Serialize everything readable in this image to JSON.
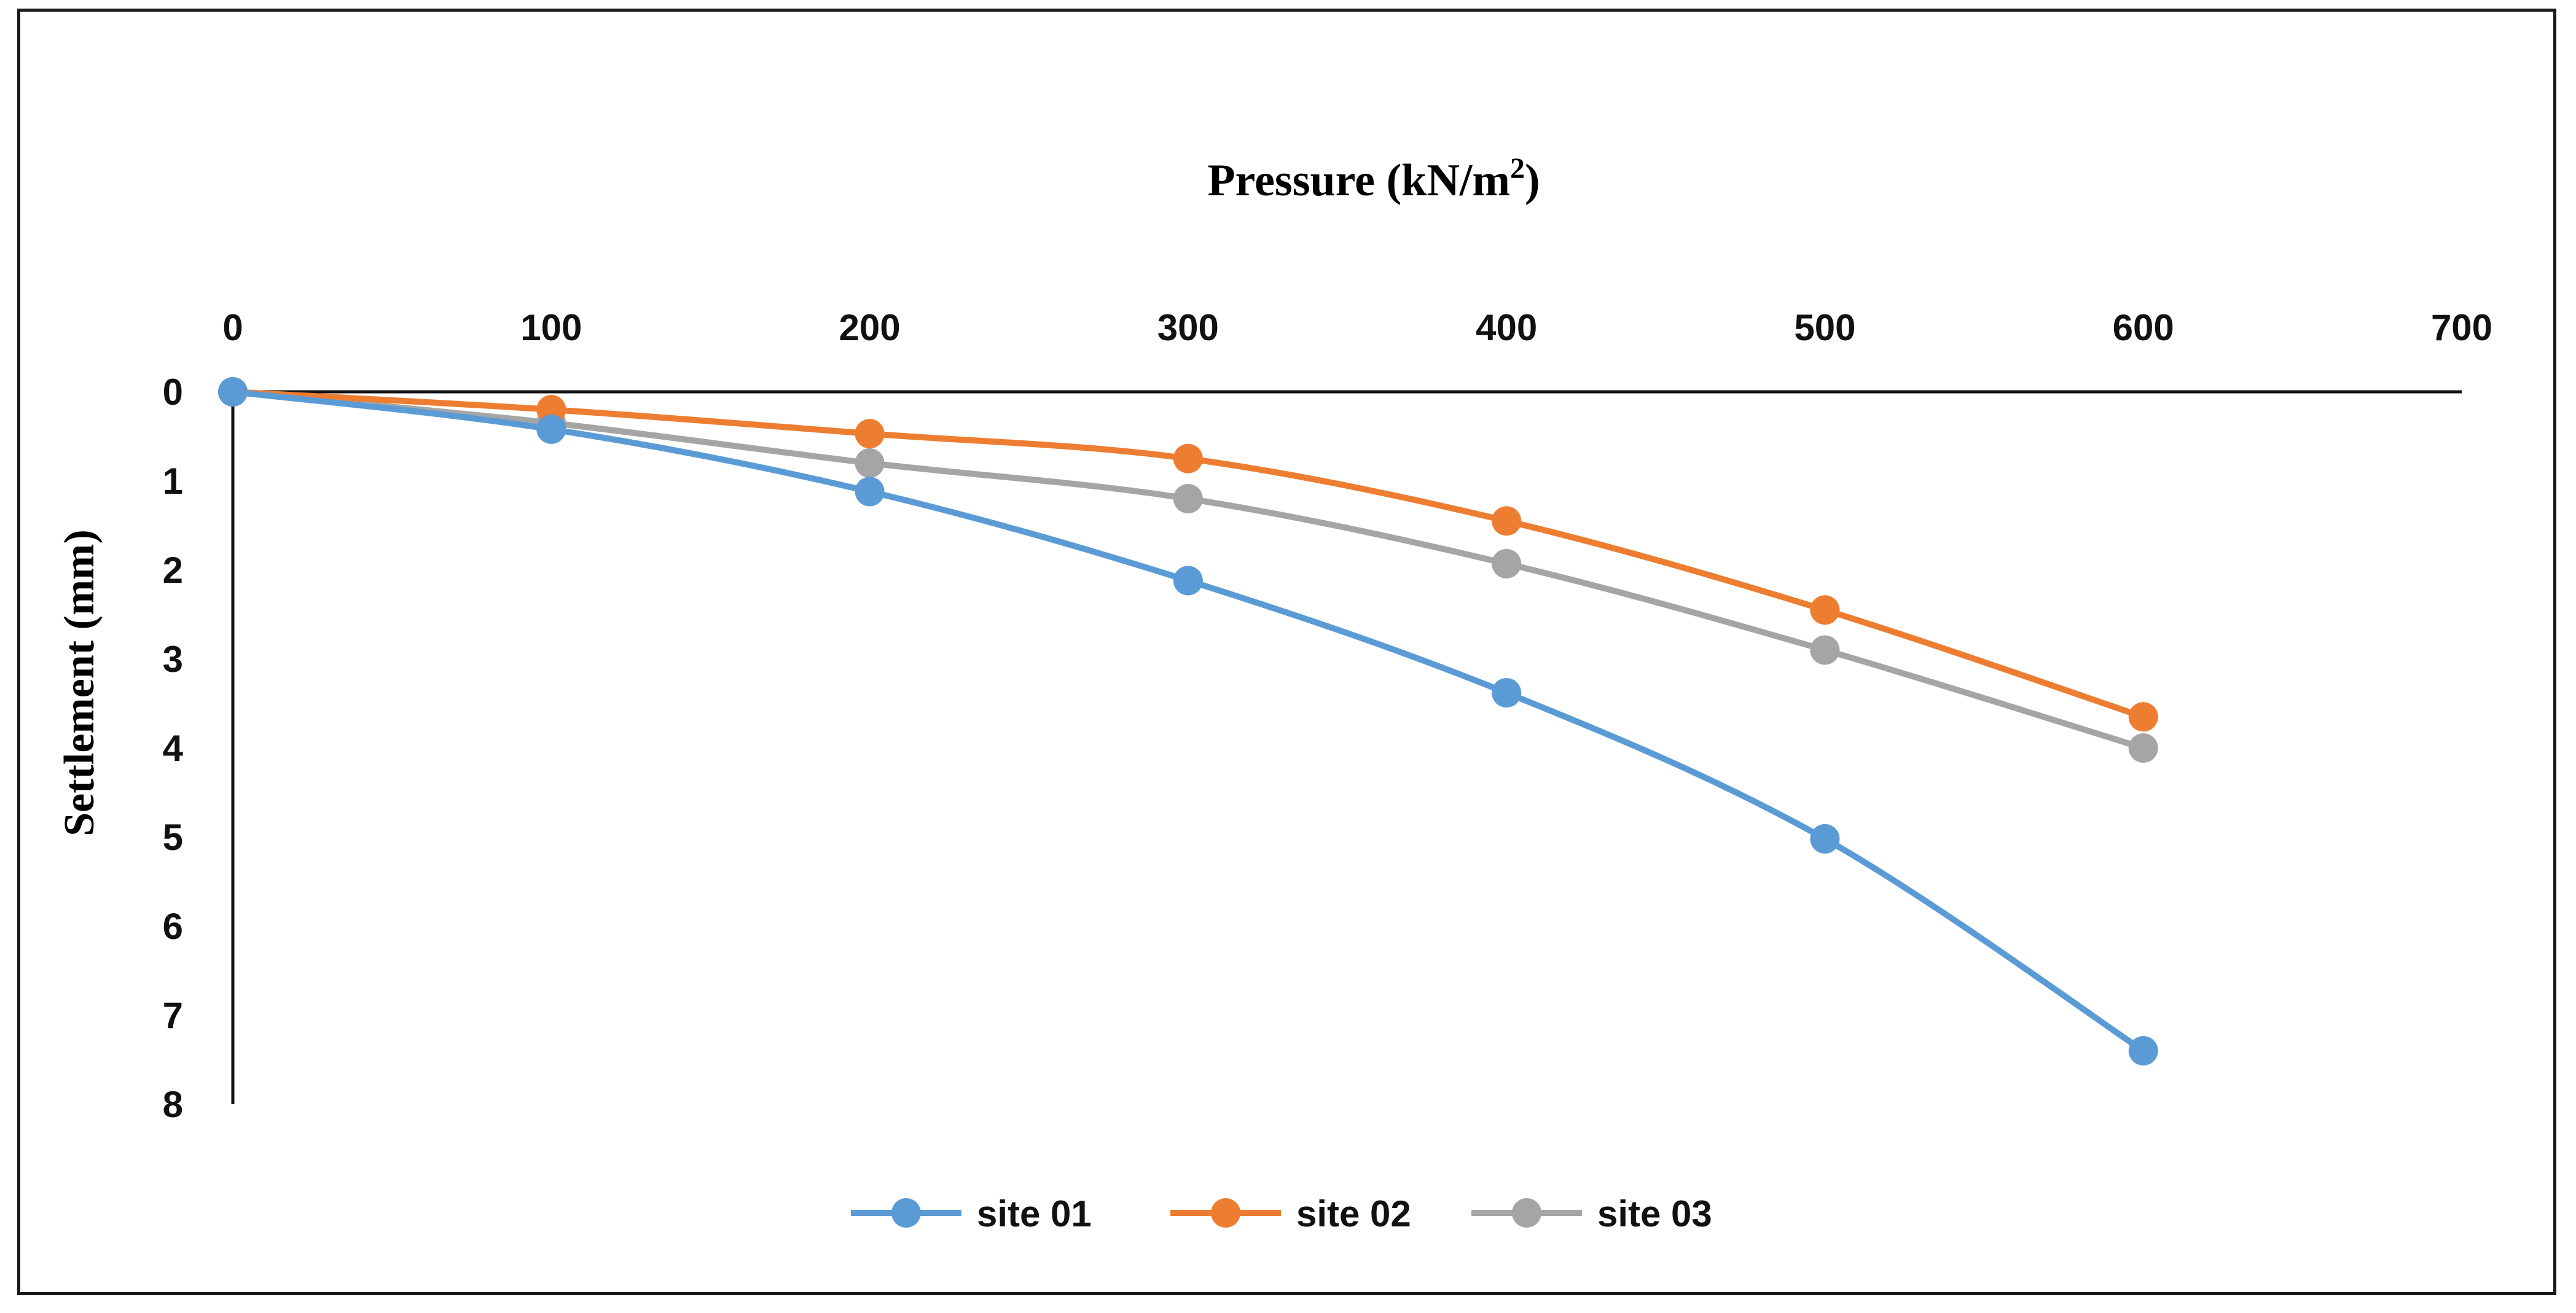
{
  "chart_data": {
    "type": "line",
    "title": "",
    "xlabel": "Pressure (kN/m",
    "xlabel_superscript": "2",
    "xlabel_close": ")",
    "ylabel": "Settlement (mm)",
    "xlim": [
      0,
      700
    ],
    "ylim": [
      0,
      8
    ],
    "y_inverted": true,
    "x_ticks": [
      "0",
      "100",
      "200",
      "300",
      "400",
      "500",
      "600",
      "700"
    ],
    "y_ticks": [
      "0",
      "1",
      "2",
      "3",
      "4",
      "5",
      "6",
      "7",
      "8"
    ],
    "x_axis_position": "top",
    "grid": false,
    "smooth": true,
    "legend_position": "bottom",
    "x": [
      0,
      100,
      200,
      300,
      400,
      500,
      600
    ],
    "series": [
      {
        "name": "site 01",
        "color": "#5B9BD5",
        "values": [
          0,
          0.42,
          1.12,
          2.12,
          3.38,
          5.02,
          7.4
        ]
      },
      {
        "name": "site 02",
        "color": "#ED7D31",
        "values": [
          0,
          0.2,
          0.47,
          0.75,
          1.45,
          2.45,
          3.65
        ]
      },
      {
        "name": "site 03",
        "color": "#A5A5A5",
        "values": [
          0,
          0.35,
          0.8,
          1.2,
          1.93,
          2.9,
          4.0
        ]
      }
    ]
  }
}
